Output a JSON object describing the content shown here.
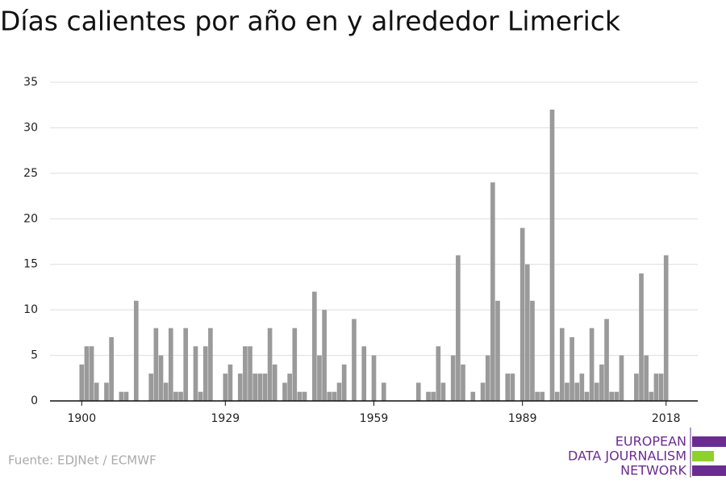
{
  "chart_data": {
    "type": "bar",
    "title": "Días calientes por año en y alrededor Limerick",
    "source": "Fuente: EDJNet / ECMWF",
    "logo": [
      "EUROPEAN",
      "DATA JOURNALISM",
      "NETWORK"
    ],
    "color": "#9a9a9a",
    "x": [
      1900,
      1901,
      1902,
      1903,
      1904,
      1905,
      1906,
      1907,
      1908,
      1909,
      1910,
      1911,
      1912,
      1913,
      1914,
      1915,
      1916,
      1917,
      1918,
      1919,
      1920,
      1921,
      1922,
      1923,
      1924,
      1925,
      1926,
      1927,
      1928,
      1929,
      1930,
      1931,
      1932,
      1933,
      1934,
      1935,
      1936,
      1937,
      1938,
      1939,
      1940,
      1941,
      1942,
      1943,
      1944,
      1945,
      1946,
      1947,
      1948,
      1949,
      1950,
      1951,
      1952,
      1953,
      1954,
      1955,
      1956,
      1957,
      1958,
      1959,
      1960,
      1961,
      1962,
      1963,
      1964,
      1965,
      1966,
      1967,
      1968,
      1969,
      1970,
      1971,
      1972,
      1973,
      1974,
      1975,
      1976,
      1977,
      1978,
      1979,
      1980,
      1981,
      1982,
      1983,
      1984,
      1985,
      1986,
      1987,
      1988,
      1989,
      1990,
      1991,
      1992,
      1993,
      1994,
      1995,
      1996,
      1997,
      1998,
      1999,
      2000,
      2001,
      2002,
      2003,
      2004,
      2005,
      2006,
      2007,
      2008,
      2009,
      2010,
      2011,
      2012,
      2013,
      2014,
      2015,
      2016,
      2017,
      2018
    ],
    "values": [
      4,
      6,
      6,
      2,
      0,
      2,
      7,
      0,
      1,
      1,
      0,
      11,
      0,
      0,
      3,
      8,
      5,
      2,
      8,
      1,
      1,
      8,
      0,
      6,
      1,
      6,
      8,
      0,
      0,
      3,
      4,
      0,
      3,
      6,
      6,
      3,
      3,
      3,
      8,
      4,
      0,
      2,
      3,
      8,
      1,
      1,
      0,
      12,
      5,
      10,
      1,
      1,
      2,
      4,
      0,
      9,
      0,
      6,
      0,
      5,
      0,
      2,
      0,
      0,
      0,
      0,
      0,
      0,
      2,
      0,
      1,
      1,
      6,
      2,
      0,
      5,
      16,
      4,
      0,
      1,
      0,
      2,
      5,
      24,
      11,
      0,
      3,
      3,
      0,
      19,
      15,
      11,
      1,
      1,
      0,
      32,
      1,
      8,
      2,
      7,
      2,
      3,
      1,
      8,
      2,
      4,
      9,
      1,
      1,
      5,
      0,
      0,
      3,
      14,
      5,
      1,
      3,
      3,
      16
    ],
    "xlim": [
      1893.6,
      2024.4
    ],
    "xticks": [
      1900,
      1929,
      1959,
      1989,
      2018
    ],
    "ylim": [
      0,
      35
    ],
    "yticks": [
      0,
      5,
      10,
      15,
      20,
      25,
      30,
      35
    ],
    "grid": true
  }
}
